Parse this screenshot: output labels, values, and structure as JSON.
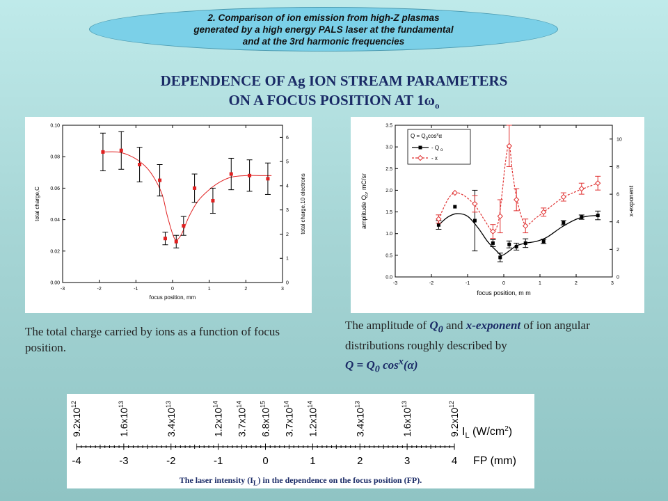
{
  "header": {
    "line1": "2. Comparison of ion emission from high-Z plasmas",
    "line2": "generated by a high energy PALS laser at the fundamental",
    "line3": "and at the 3rd harmonic frequencies"
  },
  "title": {
    "line1": "DEPENDENCE OF Ag ION STREAM PARAMETERS",
    "line2_prefix": "ON A FOCUS POSITION AT 1ω",
    "line2_sub": "o"
  },
  "caption_left": "The total charge carried by ions as a function of focus position.",
  "caption_right": {
    "part1": "The amplitude of ",
    "q": "Q",
    "q_sub": "0",
    "part2": " and ",
    "xexp": "x-exponent",
    "part3": " of ion angular distributions roughly described by",
    "formula_q": "Q = Q",
    "formula_sub": "0",
    "formula_cos": " cos",
    "formula_sup": "x",
    "formula_alpha": "(α)"
  },
  "scale_caption": "The laser intensity (I",
  "scale_caption_sub": "L",
  "scale_caption_end": ") in the dependence on the focus position (FP).",
  "chart_data": [
    {
      "type": "scatter",
      "xlabel": "focus position, mm",
      "ylabel": "total charge,C",
      "y2label": "total charge,10   electrons",
      "xlim": [
        -3,
        3
      ],
      "ylim": [
        0,
        0.1
      ],
      "y2lim": [
        0,
        6.5
      ],
      "xticks": [
        "-3",
        "-2",
        "-1",
        "0",
        "1",
        "2",
        "3"
      ],
      "yticks": [
        "0.00",
        "0.02",
        "0.04",
        "0.06",
        "0.08",
        "0.10"
      ],
      "y2ticks": [
        "0",
        "1",
        "2",
        "3",
        "4",
        "5",
        "6"
      ],
      "series": [
        {
          "x": [
            -1.9,
            -1.4,
            -0.9,
            -0.35,
            -0.2,
            0.1,
            0.3,
            0.6,
            1.1,
            1.6,
            2.1,
            2.6
          ],
          "y": [
            0.083,
            0.084,
            0.075,
            0.065,
            0.028,
            0.026,
            0.036,
            0.06,
            0.052,
            0.069,
            0.068,
            0.066
          ],
          "err": [
            0.012,
            0.012,
            0.011,
            0.01,
            0.004,
            0.004,
            0.006,
            0.009,
            0.008,
            0.01,
            0.01,
            0.01
          ]
        }
      ],
      "fit": {
        "x": [
          -1.9,
          -1.5,
          -1.2,
          -0.9,
          -0.6,
          -0.3,
          -0.15,
          0,
          0.1,
          0.25,
          0.45,
          0.7,
          1.0,
          1.3,
          1.6,
          2.0,
          2.4,
          2.7
        ],
        "y": [
          0.083,
          0.083,
          0.081,
          0.077,
          0.07,
          0.057,
          0.043,
          0.031,
          0.027,
          0.031,
          0.042,
          0.052,
          0.059,
          0.064,
          0.067,
          0.068,
          0.068,
          0.068
        ]
      }
    },
    {
      "type": "line",
      "xlabel": "focus position, m m",
      "ylabel": "amplitude Q  , mC/sr",
      "ylabel_sub": "o",
      "y2label": "x-exponent",
      "xlim": [
        -3,
        3
      ],
      "ylim": [
        0,
        3.5
      ],
      "y2lim": [
        0,
        11
      ],
      "xticks": [
        "-3",
        "-2",
        "-1",
        "0",
        "1",
        "2",
        "3"
      ],
      "yticks": [
        "0.0",
        "0.5",
        "1.0",
        "1.5",
        "2.0",
        "2.5",
        "3.0",
        "3.5"
      ],
      "y2ticks": [
        "0",
        "2",
        "4",
        "6",
        "8",
        "10"
      ],
      "legend": {
        "formula": "Q = Q",
        "formula_sub": "0",
        "formula_mid": "cos",
        "formula_sup": "x",
        "formula_end": "α",
        "entry_q": "- Q",
        "entry_q_sub": "o",
        "entry_x": "- x"
      },
      "series": [
        {
          "name": "- Qo",
          "x": [
            -1.8,
            -1.35,
            -0.8,
            -0.3,
            -0.1,
            0.15,
            0.35,
            0.6,
            1.1,
            1.65,
            2.15,
            2.6
          ],
          "y": [
            1.2,
            1.62,
            1.3,
            0.78,
            0.45,
            0.75,
            0.7,
            0.78,
            0.82,
            1.25,
            1.38,
            1.42
          ],
          "err": [
            0.1,
            0.0,
            0.7,
            0.08,
            0.1,
            0.08,
            0.08,
            0.1,
            0.05,
            0.05,
            0.05,
            0.1
          ],
          "color": "#000000",
          "marker": "square"
        },
        {
          "name": "- x",
          "x": [
            -1.8,
            -1.35,
            -0.8,
            -0.3,
            -0.1,
            0.15,
            0.35,
            0.6,
            1.1,
            1.65,
            2.15,
            2.6
          ],
          "y": [
            4.2,
            6.1,
            5.3,
            3.3,
            4.4,
            9.5,
            5.6,
            3.7,
            4.7,
            5.8,
            6.4,
            6.8
          ],
          "err": [
            0.3,
            0.0,
            0.6,
            0.5,
            1.2,
            1.5,
            0.8,
            0.5,
            0.3,
            0.3,
            0.4,
            0.5
          ],
          "color": "#e03030",
          "marker": "diamond-open"
        }
      ],
      "fit_q": {
        "x": [
          -1.8,
          -1.55,
          -1.3,
          -1.0,
          -0.7,
          -0.45,
          -0.2,
          -0.05,
          0.15,
          0.35,
          0.6,
          0.9,
          1.2,
          1.6,
          2.0,
          2.3,
          2.6
        ],
        "y": [
          1.2,
          1.38,
          1.46,
          1.4,
          1.12,
          0.82,
          0.6,
          0.5,
          0.6,
          0.72,
          0.78,
          0.82,
          0.92,
          1.15,
          1.33,
          1.4,
          1.42
        ]
      },
      "fit_x": {
        "x": [
          -1.8,
          -1.55,
          -1.35,
          -1.1,
          -0.8,
          -0.55,
          -0.3,
          -0.15,
          -0.05,
          0.05,
          0.15,
          0.25,
          0.4,
          0.6,
          0.9,
          1.2,
          1.6,
          2.0,
          2.4,
          2.6
        ],
        "y": [
          4.2,
          5.6,
          6.1,
          5.9,
          5.2,
          4.2,
          3.3,
          4.0,
          6.0,
          8.4,
          9.6,
          7.4,
          5.2,
          3.8,
          4.3,
          4.9,
          5.7,
          6.2,
          6.6,
          6.8
        ]
      }
    }
  ],
  "intensity_scale": {
    "ticks": [
      "-4",
      "-3",
      "-2",
      "-1",
      "0",
      "1",
      "2",
      "3",
      "4"
    ],
    "unit_label": "I",
    "unit_sub": "L",
    "unit_rest": " (W/cm",
    "unit_sup": "2",
    "unit_end": ")",
    "fp_label": "FP (mm)",
    "labels": [
      {
        "fp": -4,
        "mant": "9.2x10",
        "exp": "12"
      },
      {
        "fp": -3,
        "mant": "1.6x10",
        "exp": "13"
      },
      {
        "fp": -2,
        "mant": "3.4x10",
        "exp": "13"
      },
      {
        "fp": -1,
        "mant": "1.2x10",
        "exp": "14"
      },
      {
        "fp": -0.5,
        "mant": "3.7x10",
        "exp": "14"
      },
      {
        "fp": 0,
        "mant": "6.8x10",
        "exp": "15"
      },
      {
        "fp": 0.5,
        "mant": "3.7x10",
        "exp": "14"
      },
      {
        "fp": 1,
        "mant": "1.2x10",
        "exp": "14"
      },
      {
        "fp": 2,
        "mant": "3.4x10",
        "exp": "13"
      },
      {
        "fp": 3,
        "mant": "1.6x10",
        "exp": "13"
      },
      {
        "fp": 4,
        "mant": "9.2x10",
        "exp": "12"
      }
    ]
  }
}
